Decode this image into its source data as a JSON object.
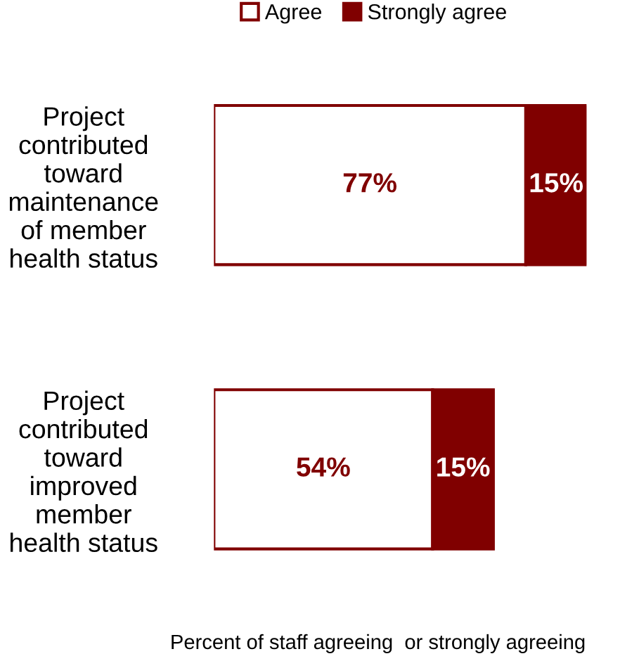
{
  "chart_data": {
    "type": "bar",
    "orientation": "horizontal",
    "stacked": true,
    "data_labels": true,
    "legend": "top",
    "tick_labels": "y",
    "grid": false,
    "xlabel": "Percent of staff agreeing  or strongly agreeing",
    "categories": [
      "Project\ncontributed\ntoward\nmaintenance\nof member\nhealth status",
      "Project\ncontributed\ntoward\nimproved\nmember\nhealth status"
    ],
    "series": [
      {
        "name": "Agree",
        "color": "#ffffff",
        "values": [
          77,
          54
        ],
        "value_labels": [
          "77%",
          "54%"
        ]
      },
      {
        "name": "Strongly agree",
        "color": "#800000",
        "values": [
          15,
          15
        ],
        "value_labels": [
          "15%",
          "15%"
        ]
      }
    ]
  }
}
